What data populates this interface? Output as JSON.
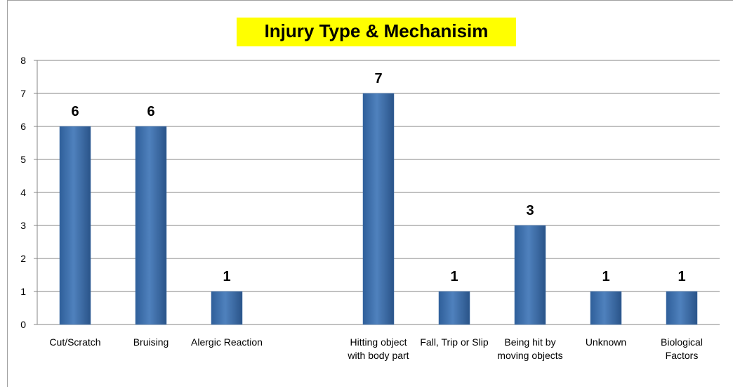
{
  "chart_data": {
    "type": "bar",
    "title": "Injury Type & Mechanisim",
    "categories": [
      "Cut/Scratch",
      "Bruising",
      "Alergic Reaction",
      null,
      "Hitting object with body part",
      "Fall, Trip or Slip",
      "Being hit by moving objects",
      "Unknown",
      "Biological Factors"
    ],
    "values": [
      6,
      6,
      1,
      null,
      7,
      1,
      3,
      1,
      1
    ],
    "color": "#4f81bd",
    "ylim": [
      0,
      8
    ],
    "yticks": [
      0,
      1,
      2,
      3,
      4,
      5,
      6,
      7,
      8
    ],
    "grid": true
  }
}
